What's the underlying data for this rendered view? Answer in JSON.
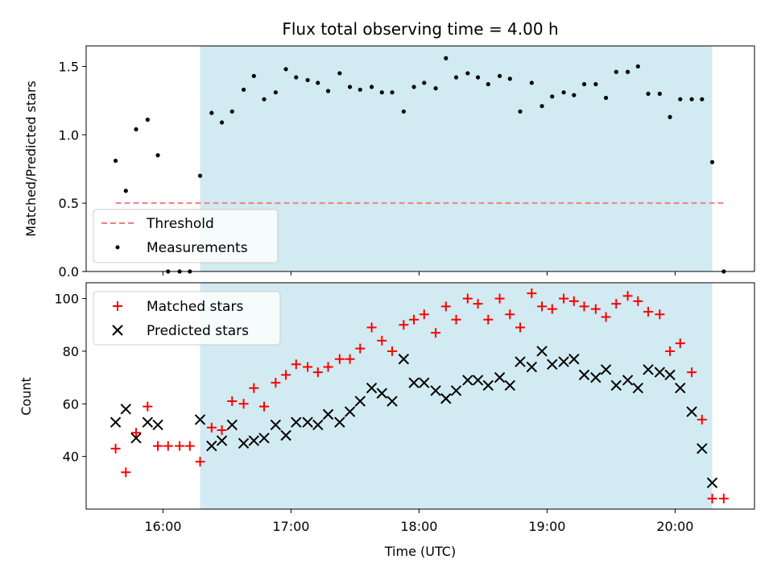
{
  "chart_data": [
    {
      "type": "scatter",
      "panel": "top",
      "title": "Flux total observing time = 4.00 h",
      "ylabel": "Matched/Predicted stars",
      "xlabel": "",
      "ylim": [
        0,
        1.65
      ],
      "yticks": [
        0.0,
        0.5,
        1.0,
        1.5
      ],
      "ytick_labels": [
        "0.0",
        "0.5",
        "1.0",
        "1.5"
      ],
      "legend_location": "lower-left",
      "threshold": {
        "label": "Threshold",
        "value": 0.5,
        "x_start": 15.63,
        "x_end": 20.38,
        "color": "#f08080"
      },
      "shaded_window": {
        "start": 16.29,
        "end": 20.29,
        "color": "#add8e6"
      },
      "series": [
        {
          "name": "Measurements",
          "color": "#000000",
          "x": [
            15.63,
            15.71,
            15.79,
            15.88,
            15.96,
            16.04,
            16.13,
            16.21,
            16.29,
            16.38,
            16.46,
            16.54,
            16.63,
            16.71,
            16.79,
            16.88,
            16.96,
            17.04,
            17.13,
            17.21,
            17.29,
            17.38,
            17.46,
            17.54,
            17.63,
            17.71,
            17.79,
            17.88,
            17.96,
            18.04,
            18.13,
            18.21,
            18.29,
            18.38,
            18.46,
            18.54,
            18.63,
            18.71,
            18.79,
            18.88,
            18.96,
            19.04,
            19.13,
            19.21,
            19.29,
            19.38,
            19.46,
            19.54,
            19.63,
            19.71,
            19.79,
            19.88,
            19.96,
            20.04,
            20.13,
            20.21,
            20.29,
            20.38
          ],
          "y": [
            0.81,
            0.59,
            1.04,
            1.11,
            0.85,
            0.0,
            0.0,
            0.0,
            0.7,
            1.16,
            1.09,
            1.17,
            1.33,
            1.43,
            1.26,
            1.31,
            1.48,
            1.42,
            1.4,
            1.38,
            1.32,
            1.45,
            1.35,
            1.33,
            1.35,
            1.31,
            1.31,
            1.17,
            1.35,
            1.38,
            1.34,
            1.56,
            1.42,
            1.45,
            1.42,
            1.37,
            1.43,
            1.41,
            1.17,
            1.38,
            1.21,
            1.28,
            1.31,
            1.29,
            1.37,
            1.37,
            1.27,
            1.46,
            1.46,
            1.5,
            1.3,
            1.3,
            1.13,
            1.26,
            1.26,
            1.26,
            0.8,
            0.0
          ]
        }
      ]
    },
    {
      "type": "scatter",
      "panel": "bottom",
      "title": "",
      "xlabel": "Time (UTC)",
      "ylabel": "Count",
      "xlim": [
        15.4,
        20.62
      ],
      "ylim": [
        20,
        106
      ],
      "xticks": [
        16,
        17,
        18,
        19,
        20
      ],
      "xtick_labels": [
        "16:00",
        "17:00",
        "18:00",
        "19:00",
        "20:00"
      ],
      "yticks": [
        40,
        60,
        80,
        100
      ],
      "ytick_labels": [
        "40",
        "60",
        "80",
        "100"
      ],
      "legend_location": "upper-left",
      "shaded_window": {
        "start": 16.29,
        "end": 20.29,
        "color": "#add8e6"
      },
      "series": [
        {
          "name": "Matched stars",
          "marker": "plus",
          "color": "#ff0000",
          "x": [
            15.63,
            15.71,
            15.79,
            15.88,
            15.96,
            16.04,
            16.13,
            16.21,
            16.29,
            16.38,
            16.46,
            16.54,
            16.63,
            16.71,
            16.79,
            16.88,
            16.96,
            17.04,
            17.13,
            17.21,
            17.29,
            17.38,
            17.46,
            17.54,
            17.63,
            17.71,
            17.79,
            17.88,
            17.96,
            18.04,
            18.13,
            18.21,
            18.29,
            18.38,
            18.46,
            18.54,
            18.63,
            18.71,
            18.79,
            18.88,
            18.96,
            19.04,
            19.13,
            19.21,
            19.29,
            19.38,
            19.46,
            19.54,
            19.63,
            19.71,
            19.79,
            19.88,
            19.96,
            20.04,
            20.13,
            20.21,
            20.29,
            20.38
          ],
          "y": [
            43,
            34,
            49,
            59,
            44,
            44,
            44,
            44,
            38,
            51,
            50,
            61,
            60,
            66,
            59,
            68,
            71,
            75,
            74,
            72,
            74,
            77,
            77,
            81,
            89,
            84,
            80,
            90,
            92,
            94,
            87,
            97,
            92,
            100,
            98,
            92,
            100,
            94,
            89,
            102,
            97,
            96,
            100,
            99,
            97,
            96,
            93,
            98,
            101,
            99,
            95,
            94,
            80,
            83,
            72,
            54,
            24,
            24
          ]
        },
        {
          "name": "Predicted stars",
          "marker": "x",
          "color": "#000000",
          "x": [
            15.63,
            15.71,
            15.79,
            15.88,
            15.96,
            16.29,
            16.38,
            16.46,
            16.54,
            16.63,
            16.71,
            16.79,
            16.88,
            16.96,
            17.04,
            17.13,
            17.21,
            17.29,
            17.38,
            17.46,
            17.54,
            17.63,
            17.71,
            17.79,
            17.88,
            17.96,
            18.04,
            18.13,
            18.21,
            18.29,
            18.38,
            18.46,
            18.54,
            18.63,
            18.71,
            18.79,
            18.88,
            18.96,
            19.04,
            19.13,
            19.21,
            19.29,
            19.38,
            19.46,
            19.54,
            19.63,
            19.71,
            19.79,
            19.88,
            19.96,
            20.04,
            20.13,
            20.21,
            20.29
          ],
          "y": [
            53,
            58,
            47,
            53,
            52,
            54,
            44,
            46,
            52,
            45,
            46,
            47,
            52,
            48,
            53,
            53,
            52,
            56,
            53,
            57,
            61,
            66,
            64,
            61,
            77,
            68,
            68,
            65,
            62,
            65,
            69,
            69,
            67,
            70,
            67,
            76,
            74,
            80,
            75,
            76,
            77,
            71,
            70,
            73,
            67,
            69,
            66,
            73,
            72,
            71,
            66,
            57,
            43,
            30
          ]
        }
      ]
    }
  ]
}
